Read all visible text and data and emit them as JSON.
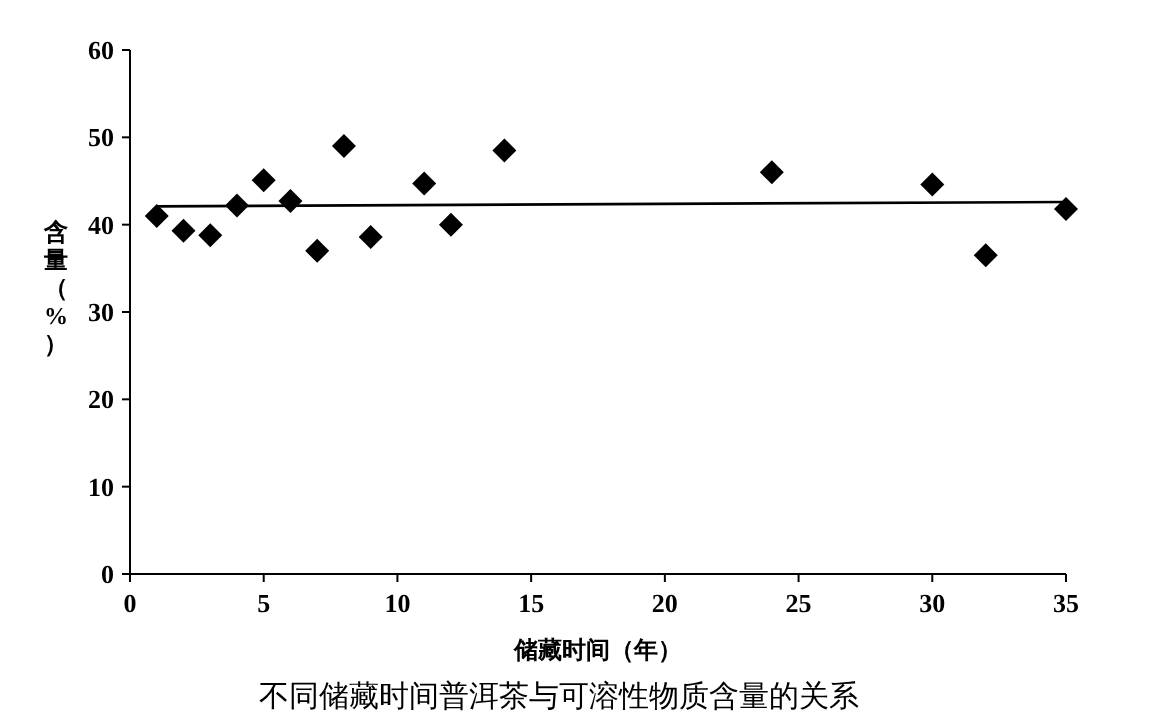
{
  "chart_data": {
    "type": "scatter",
    "xlabel": "储藏时间（年）",
    "ylabel": "含量（%）",
    "annotations": [
      "不同储藏时间普洱茶与可溶性物质含量的关系"
    ],
    "xlim": [
      0,
      35
    ],
    "ylim": [
      0,
      60
    ],
    "xticks": [
      0,
      5,
      10,
      15,
      20,
      25,
      30,
      35
    ],
    "yticks": [
      0,
      10,
      20,
      30,
      40,
      50,
      60
    ],
    "grid": false,
    "marker": "diamond",
    "series": [
      {
        "type": "scatter",
        "color": "#000000",
        "x": [
          1,
          2,
          3,
          4,
          5,
          6,
          7,
          8,
          9,
          11,
          12,
          14,
          24,
          30,
          32,
          35
        ],
        "values": [
          41.0,
          39.3,
          38.8,
          42.2,
          45.1,
          42.7,
          37.0,
          49.0,
          38.6,
          44.7,
          40.0,
          48.5,
          46.0,
          44.6,
          36.5,
          41.8
        ]
      },
      {
        "type": "line",
        "color": "#000000",
        "line_style": "solid",
        "marker": "none",
        "x": [
          1,
          35
        ],
        "values": [
          42.1,
          42.6
        ]
      }
    ]
  }
}
